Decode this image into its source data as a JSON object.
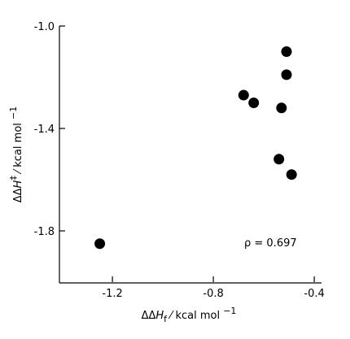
{
  "chart_data": {
    "type": "scatter",
    "x": [
      -1.25,
      -0.68,
      -0.64,
      -0.51,
      -0.51,
      -0.53,
      -0.54,
      -0.49
    ],
    "series": [
      {
        "color": "#000000",
        "values": [
          -1.85,
          -1.27,
          -1.3,
          -1.1,
          -1.19,
          -1.32,
          -1.52,
          -1.58
        ]
      }
    ],
    "xlim": [
      -1.41,
      -0.38
    ],
    "ylim": [
      -2.0,
      -1.0
    ],
    "xticks": [
      -1.2,
      -0.8,
      -0.4
    ],
    "yticks": [
      {
        "value": -1.0,
        "label": "-1.0"
      },
      -1.4,
      -1.8
    ],
    "x_label": [
      "ΔΔ",
      "H",
      "f",
      " ⁄  kcal mol ",
      "−1"
    ],
    "y_label": [
      "ΔΔ",
      "H",
      "‡",
      " ⁄  kcal mol ",
      "−1"
    ],
    "annotation": "ρ  = 0.697"
  }
}
